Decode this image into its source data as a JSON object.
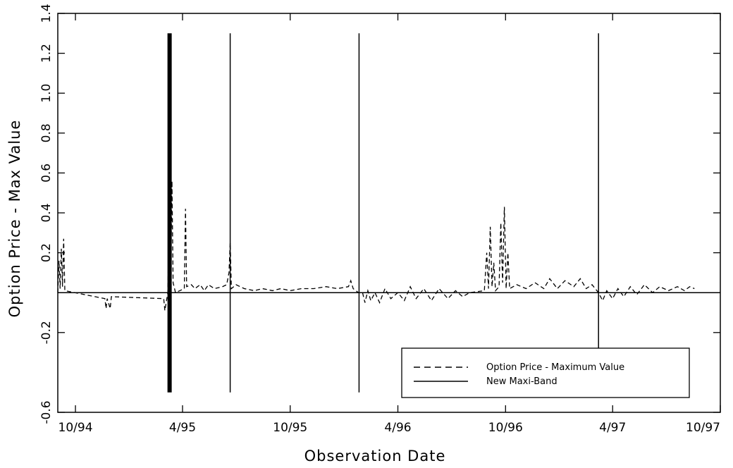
{
  "chart_data": {
    "type": "line",
    "title": "",
    "xlabel": "Observation Date",
    "ylabel": "Option Price - Max Value",
    "ylim": [
      -0.6,
      1.4
    ],
    "y_ticks": [
      {
        "value": -0.6,
        "label": "-0.6"
      },
      {
        "value": -0.2,
        "label": "-0.2"
      },
      {
        "value": 0.2,
        "label": "0.2"
      },
      {
        "value": 0.4,
        "label": "0.4"
      },
      {
        "value": 0.6,
        "label": "0.6"
      },
      {
        "value": 0.8,
        "label": "0.8"
      },
      {
        "value": 1.0,
        "label": "1.0"
      },
      {
        "value": 1.2,
        "label": "1.2"
      },
      {
        "value": 1.4,
        "label": "1.4"
      }
    ],
    "x_ticks": [
      {
        "date": "1994-10",
        "label": "10/94"
      },
      {
        "date": "1995-04",
        "label": "4/95"
      },
      {
        "date": "1995-10",
        "label": "10/95"
      },
      {
        "date": "1996-04",
        "label": "4/96"
      },
      {
        "date": "1996-10",
        "label": "10/96"
      },
      {
        "date": "1997-04",
        "label": "4/97"
      },
      {
        "date": "1997-10",
        "label": "10/97"
      }
    ],
    "xlim": [
      "1994-09",
      "1997-10"
    ],
    "grid": false,
    "legend_position": "bottom-right",
    "reference_line_y": 0,
    "series": [
      {
        "name": "Option Price - Maximum Value",
        "style": "dashed",
        "points": [
          [
            "1994-09-01",
            0.0
          ],
          [
            "1994-09-03",
            0.16
          ],
          [
            "1994-09-05",
            0.02
          ],
          [
            "1994-09-07",
            0.22
          ],
          [
            "1994-09-09",
            0.03
          ],
          [
            "1994-09-11",
            0.27
          ],
          [
            "1994-09-13",
            0.01
          ],
          [
            "1994-11-20",
            -0.03
          ],
          [
            "1994-11-22",
            -0.08
          ],
          [
            "1994-11-24",
            -0.03
          ],
          [
            "1994-11-29",
            -0.08
          ],
          [
            "1994-12-01",
            -0.02
          ],
          [
            "1995-02-28",
            -0.03
          ],
          [
            "1995-03-02",
            -0.09
          ],
          [
            "1995-03-07",
            0.0
          ],
          [
            "1995-03-10",
            0.5
          ],
          [
            "1995-03-12",
            0.1
          ],
          [
            "1995-03-14",
            0.56
          ],
          [
            "1995-03-16",
            0.05
          ],
          [
            "1995-03-20",
            0.0
          ],
          [
            "1995-04-04",
            0.02
          ],
          [
            "1995-04-06",
            0.42
          ],
          [
            "1995-04-08",
            0.03
          ],
          [
            "1995-04-16",
            0.04
          ],
          [
            "1995-04-22",
            0.02
          ],
          [
            "1995-05-01",
            0.04
          ],
          [
            "1995-05-08",
            0.01
          ],
          [
            "1995-05-15",
            0.04
          ],
          [
            "1995-05-25",
            0.02
          ],
          [
            "1995-06-08",
            0.03
          ],
          [
            "1995-06-15",
            0.04
          ],
          [
            "1995-06-19",
            0.1
          ],
          [
            "1995-06-21",
            0.25
          ],
          [
            "1995-06-23",
            0.02
          ],
          [
            "1995-07-01",
            0.04
          ],
          [
            "1995-07-15",
            0.02
          ],
          [
            "1995-08-01",
            0.01
          ],
          [
            "1995-08-15",
            0.02
          ],
          [
            "1995-09-01",
            0.01
          ],
          [
            "1995-09-15",
            0.02
          ],
          [
            "1995-10-01",
            0.01
          ],
          [
            "1995-10-20",
            0.02
          ],
          [
            "1995-11-10",
            0.02
          ],
          [
            "1995-12-01",
            0.03
          ],
          [
            "1995-12-20",
            0.02
          ],
          [
            "1996-01-08",
            0.03
          ],
          [
            "1996-01-12",
            0.06
          ],
          [
            "1996-01-16",
            0.02
          ],
          [
            "1996-01-25",
            0.0
          ],
          [
            "1996-02-01",
            0.0
          ],
          [
            "1996-02-05",
            -0.05
          ],
          [
            "1996-02-10",
            0.01
          ],
          [
            "1996-02-15",
            -0.04
          ],
          [
            "1996-02-22",
            0.0
          ],
          [
            "1996-03-01",
            -0.05
          ],
          [
            "1996-03-10",
            0.02
          ],
          [
            "1996-03-20",
            -0.03
          ],
          [
            "1996-04-01",
            0.0
          ],
          [
            "1996-04-12",
            -0.04
          ],
          [
            "1996-04-22",
            0.03
          ],
          [
            "1996-05-02",
            -0.03
          ],
          [
            "1996-05-15",
            0.02
          ],
          [
            "1996-05-28",
            -0.04
          ],
          [
            "1996-06-10",
            0.02
          ],
          [
            "1996-06-25",
            -0.03
          ],
          [
            "1996-07-08",
            0.01
          ],
          [
            "1996-07-20",
            -0.02
          ],
          [
            "1996-08-01",
            0.0
          ],
          [
            "1996-08-26",
            0.01
          ],
          [
            "1996-08-30",
            0.2
          ],
          [
            "1996-09-02",
            0.02
          ],
          [
            "1996-09-05",
            0.33
          ],
          [
            "1996-09-08",
            0.03
          ],
          [
            "1996-09-11",
            0.15
          ],
          [
            "1996-09-14",
            0.01
          ],
          [
            "1996-09-20",
            0.03
          ],
          [
            "1996-09-23",
            0.35
          ],
          [
            "1996-09-26",
            0.05
          ],
          [
            "1996-09-29",
            0.43
          ],
          [
            "1996-10-02",
            0.02
          ],
          [
            "1996-10-05",
            0.2
          ],
          [
            "1996-10-08",
            0.02
          ],
          [
            "1996-10-20",
            0.04
          ],
          [
            "1996-11-05",
            0.02
          ],
          [
            "1996-11-20",
            0.05
          ],
          [
            "1996-12-05",
            0.02
          ],
          [
            "1996-12-15",
            0.07
          ],
          [
            "1996-12-28",
            0.02
          ],
          [
            "1997-01-10",
            0.06
          ],
          [
            "1997-01-25",
            0.03
          ],
          [
            "1997-02-05",
            0.07
          ],
          [
            "1997-02-15",
            0.02
          ],
          [
            "1997-02-25",
            0.04
          ],
          [
            "1997-03-08",
            0.0
          ],
          [
            "1997-03-15",
            -0.04
          ],
          [
            "1997-03-22",
            0.01
          ],
          [
            "1997-04-01",
            -0.03
          ],
          [
            "1997-04-10",
            0.02
          ],
          [
            "1997-04-20",
            -0.02
          ],
          [
            "1997-05-01",
            0.03
          ],
          [
            "1997-05-12",
            -0.01
          ],
          [
            "1997-05-25",
            0.04
          ],
          [
            "1997-06-08",
            0.0
          ],
          [
            "1997-06-20",
            0.03
          ],
          [
            "1997-07-05",
            0.01
          ],
          [
            "1997-07-20",
            0.03
          ],
          [
            "1997-08-01",
            0.01
          ],
          [
            "1997-08-10",
            0.03
          ],
          [
            "1997-08-18",
            0.02
          ]
        ]
      },
      {
        "name": "New Maxi-Band",
        "style": "solid",
        "bands": [
          {
            "date": "1995-03-10",
            "y_bottom": -0.5,
            "y_top": 1.3
          },
          {
            "date": "1995-06-21",
            "y_bottom": -0.5,
            "y_top": 1.3
          },
          {
            "date": "1996-01-26",
            "y_bottom": -0.5,
            "y_top": 1.3
          },
          {
            "date": "1997-03-08",
            "y_bottom": -0.3,
            "y_top": 1.3
          }
        ]
      }
    ]
  }
}
